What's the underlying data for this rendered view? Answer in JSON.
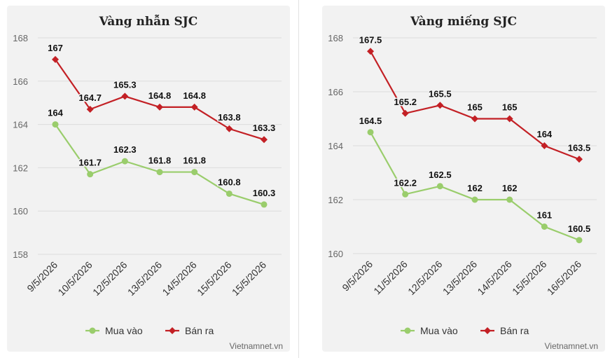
{
  "credit": "Vietnamnet.vn",
  "colors": {
    "buy": "#9acd6c",
    "sell": "#c32025"
  },
  "chart_data": [
    {
      "type": "line",
      "title": "Vàng nhẫn SJC",
      "categories": [
        "9/5/2026",
        "10/5/2026",
        "12/5/2026",
        "13/5/2026",
        "14/5/2026",
        "15/5/2026",
        "15/5/2026"
      ],
      "ylim": [
        158,
        168
      ],
      "yticks": [
        158,
        160,
        162,
        164,
        166,
        168
      ],
      "grid": true,
      "legend": "bottom-center",
      "series": [
        {
          "name": "Mua vào",
          "color": "#9acd6c",
          "marker": "circle",
          "values": [
            164,
            161.7,
            162.3,
            161.8,
            161.8,
            160.8,
            160.3
          ],
          "labels": [
            "164",
            "161.7",
            "162.3",
            "161.8",
            "161.8",
            "160.8",
            "160.3"
          ]
        },
        {
          "name": "Bán ra",
          "color": "#c32025",
          "marker": "diamond",
          "values": [
            167,
            164.7,
            165.3,
            164.8,
            164.8,
            163.8,
            163.3
          ],
          "labels": [
            "167",
            "164.7",
            "165.3",
            "164.8",
            "164.8",
            "163.8",
            "163.3"
          ]
        }
      ]
    },
    {
      "type": "line",
      "title": "Vàng miếng SJC",
      "categories": [
        "9/5/2026",
        "11/5/2026",
        "12/5/2026",
        "13/5/2026",
        "14/5/2026",
        "15/5/2026",
        "16/5/2026"
      ],
      "ylim": [
        160,
        168
      ],
      "yticks": [
        160,
        162,
        164,
        166,
        168
      ],
      "grid": true,
      "legend": "bottom-center",
      "series": [
        {
          "name": "Mua vào",
          "color": "#9acd6c",
          "marker": "circle",
          "values": [
            164.5,
            162.2,
            162.5,
            162,
            162,
            161,
            160.5
          ],
          "labels": [
            "164.5",
            "162.2",
            "162.5",
            "162",
            "162",
            "161",
            "160.5"
          ]
        },
        {
          "name": "Bán ra",
          "color": "#c32025",
          "marker": "diamond",
          "values": [
            167.5,
            165.2,
            165.5,
            165,
            165,
            164,
            163.5
          ],
          "labels": [
            "167.5",
            "165.2",
            "165.5",
            "165",
            "165",
            "164",
            "163.5"
          ]
        }
      ]
    }
  ]
}
